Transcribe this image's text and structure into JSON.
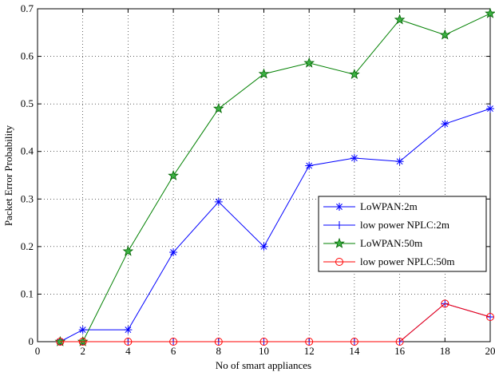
{
  "chart_data": {
    "type": "line",
    "title": "",
    "xlabel": "No of smart appliances",
    "ylabel": "Packet Error Probability",
    "xlim": [
      0,
      20
    ],
    "ylim": [
      0,
      0.7
    ],
    "xticks": [
      0,
      2,
      4,
      6,
      8,
      10,
      12,
      14,
      16,
      18,
      20
    ],
    "yticks": [
      0,
      0.1,
      0.2,
      0.3,
      0.4,
      0.5,
      0.6,
      0.7
    ],
    "grid": true,
    "legend_position": "center-right",
    "x": [
      1,
      2,
      4,
      6,
      8,
      10,
      12,
      14,
      16,
      18,
      20
    ],
    "series": [
      {
        "name": "LoWPAN:2m",
        "color": "#0000ff",
        "marker": "asterisk",
        "values": [
          0,
          0.025,
          0.025,
          0.188,
          0.294,
          0.2,
          0.37,
          0.386,
          0.379,
          0.458,
          0.49
        ]
      },
      {
        "name": "low power NPLC:2m",
        "color": "#0000ff",
        "marker": "plus",
        "values": [
          0,
          0,
          0,
          0,
          0,
          0,
          0,
          0,
          0,
          0.08,
          0.052
        ]
      },
      {
        "name": "LoWPAN:50m",
        "color": "#008000",
        "marker": "star",
        "values": [
          0,
          0,
          0.19,
          0.349,
          0.49,
          0.563,
          0.586,
          0.562,
          0.677,
          0.645,
          0.69
        ]
      },
      {
        "name": "low power NPLC:50m",
        "color": "#ff0000",
        "marker": "circle",
        "values": [
          0,
          0,
          0,
          0,
          0,
          0,
          0,
          0,
          0,
          0.08,
          0.052
        ]
      }
    ]
  }
}
